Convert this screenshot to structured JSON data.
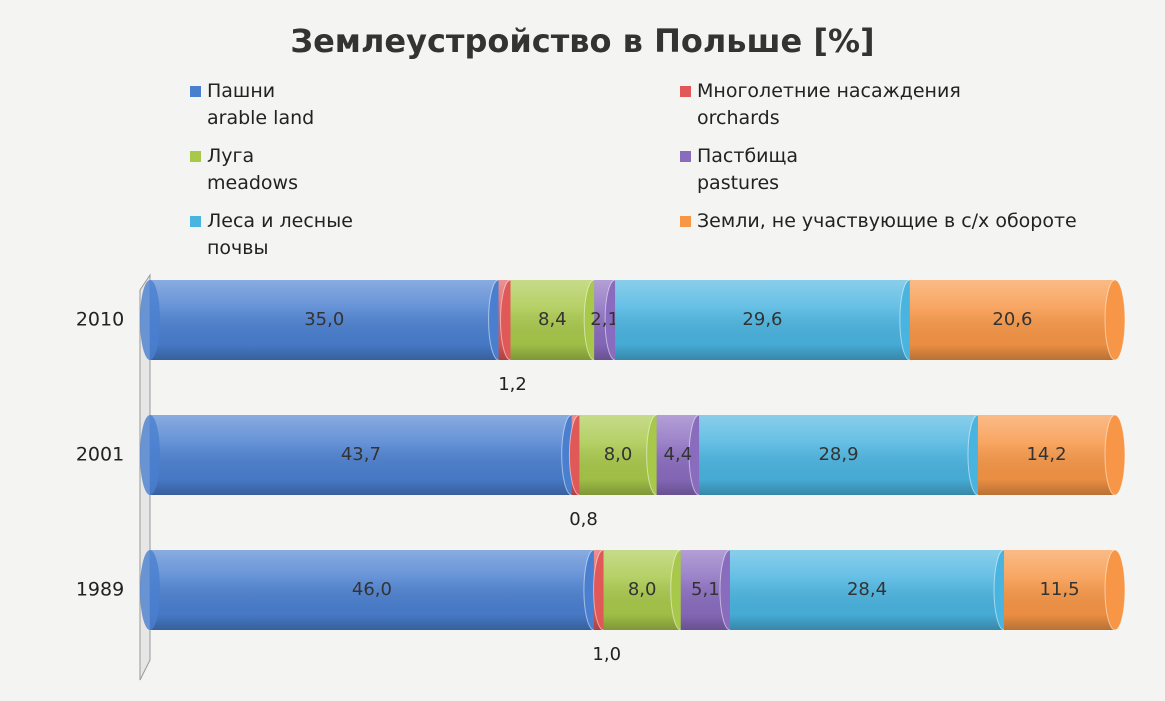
{
  "chart_data": {
    "type": "stacked_bar_horizontal_100",
    "title": "Землеустройство в Польше [%]",
    "categories": [
      "2010",
      "2001",
      "1989"
    ],
    "series": [
      {
        "name": "Пашни\narable land",
        "color": "#4a7fd0",
        "values": [
          35.0,
          43.7,
          46.0
        ],
        "value_labels": [
          "35,0",
          "43,7",
          "46,0"
        ]
      },
      {
        "name": "Многолетние насаждения\norchards",
        "color": "#e05858",
        "values": [
          1.2,
          0.8,
          1.0
        ],
        "value_labels": [
          "1,2",
          "0,8",
          "1,0"
        ]
      },
      {
        "name": "Луга\nmeadows",
        "color": "#a8c84a",
        "values": [
          8.4,
          8.0,
          8.0
        ],
        "value_labels": [
          "8,4",
          "8,0",
          "8,0"
        ]
      },
      {
        "name": "Пастбища\npastures",
        "color": "#8a6cbf",
        "values": [
          2.1,
          4.4,
          5.1
        ],
        "value_labels": [
          "2,1",
          "4,4",
          "5,1"
        ]
      },
      {
        "name": "Леса и лесные\nпочвы",
        "color": "#4ab4e0",
        "values": [
          29.6,
          28.9,
          28.4
        ],
        "value_labels": [
          "29,6",
          "28,9",
          "28,4"
        ]
      },
      {
        "name": "Земли, не участвующие  в с/х обороте",
        "color": "#f79646",
        "values": [
          20.6,
          14.2,
          11.5
        ],
        "value_labels": [
          "20,6",
          "14,2",
          "11,5"
        ]
      }
    ]
  }
}
